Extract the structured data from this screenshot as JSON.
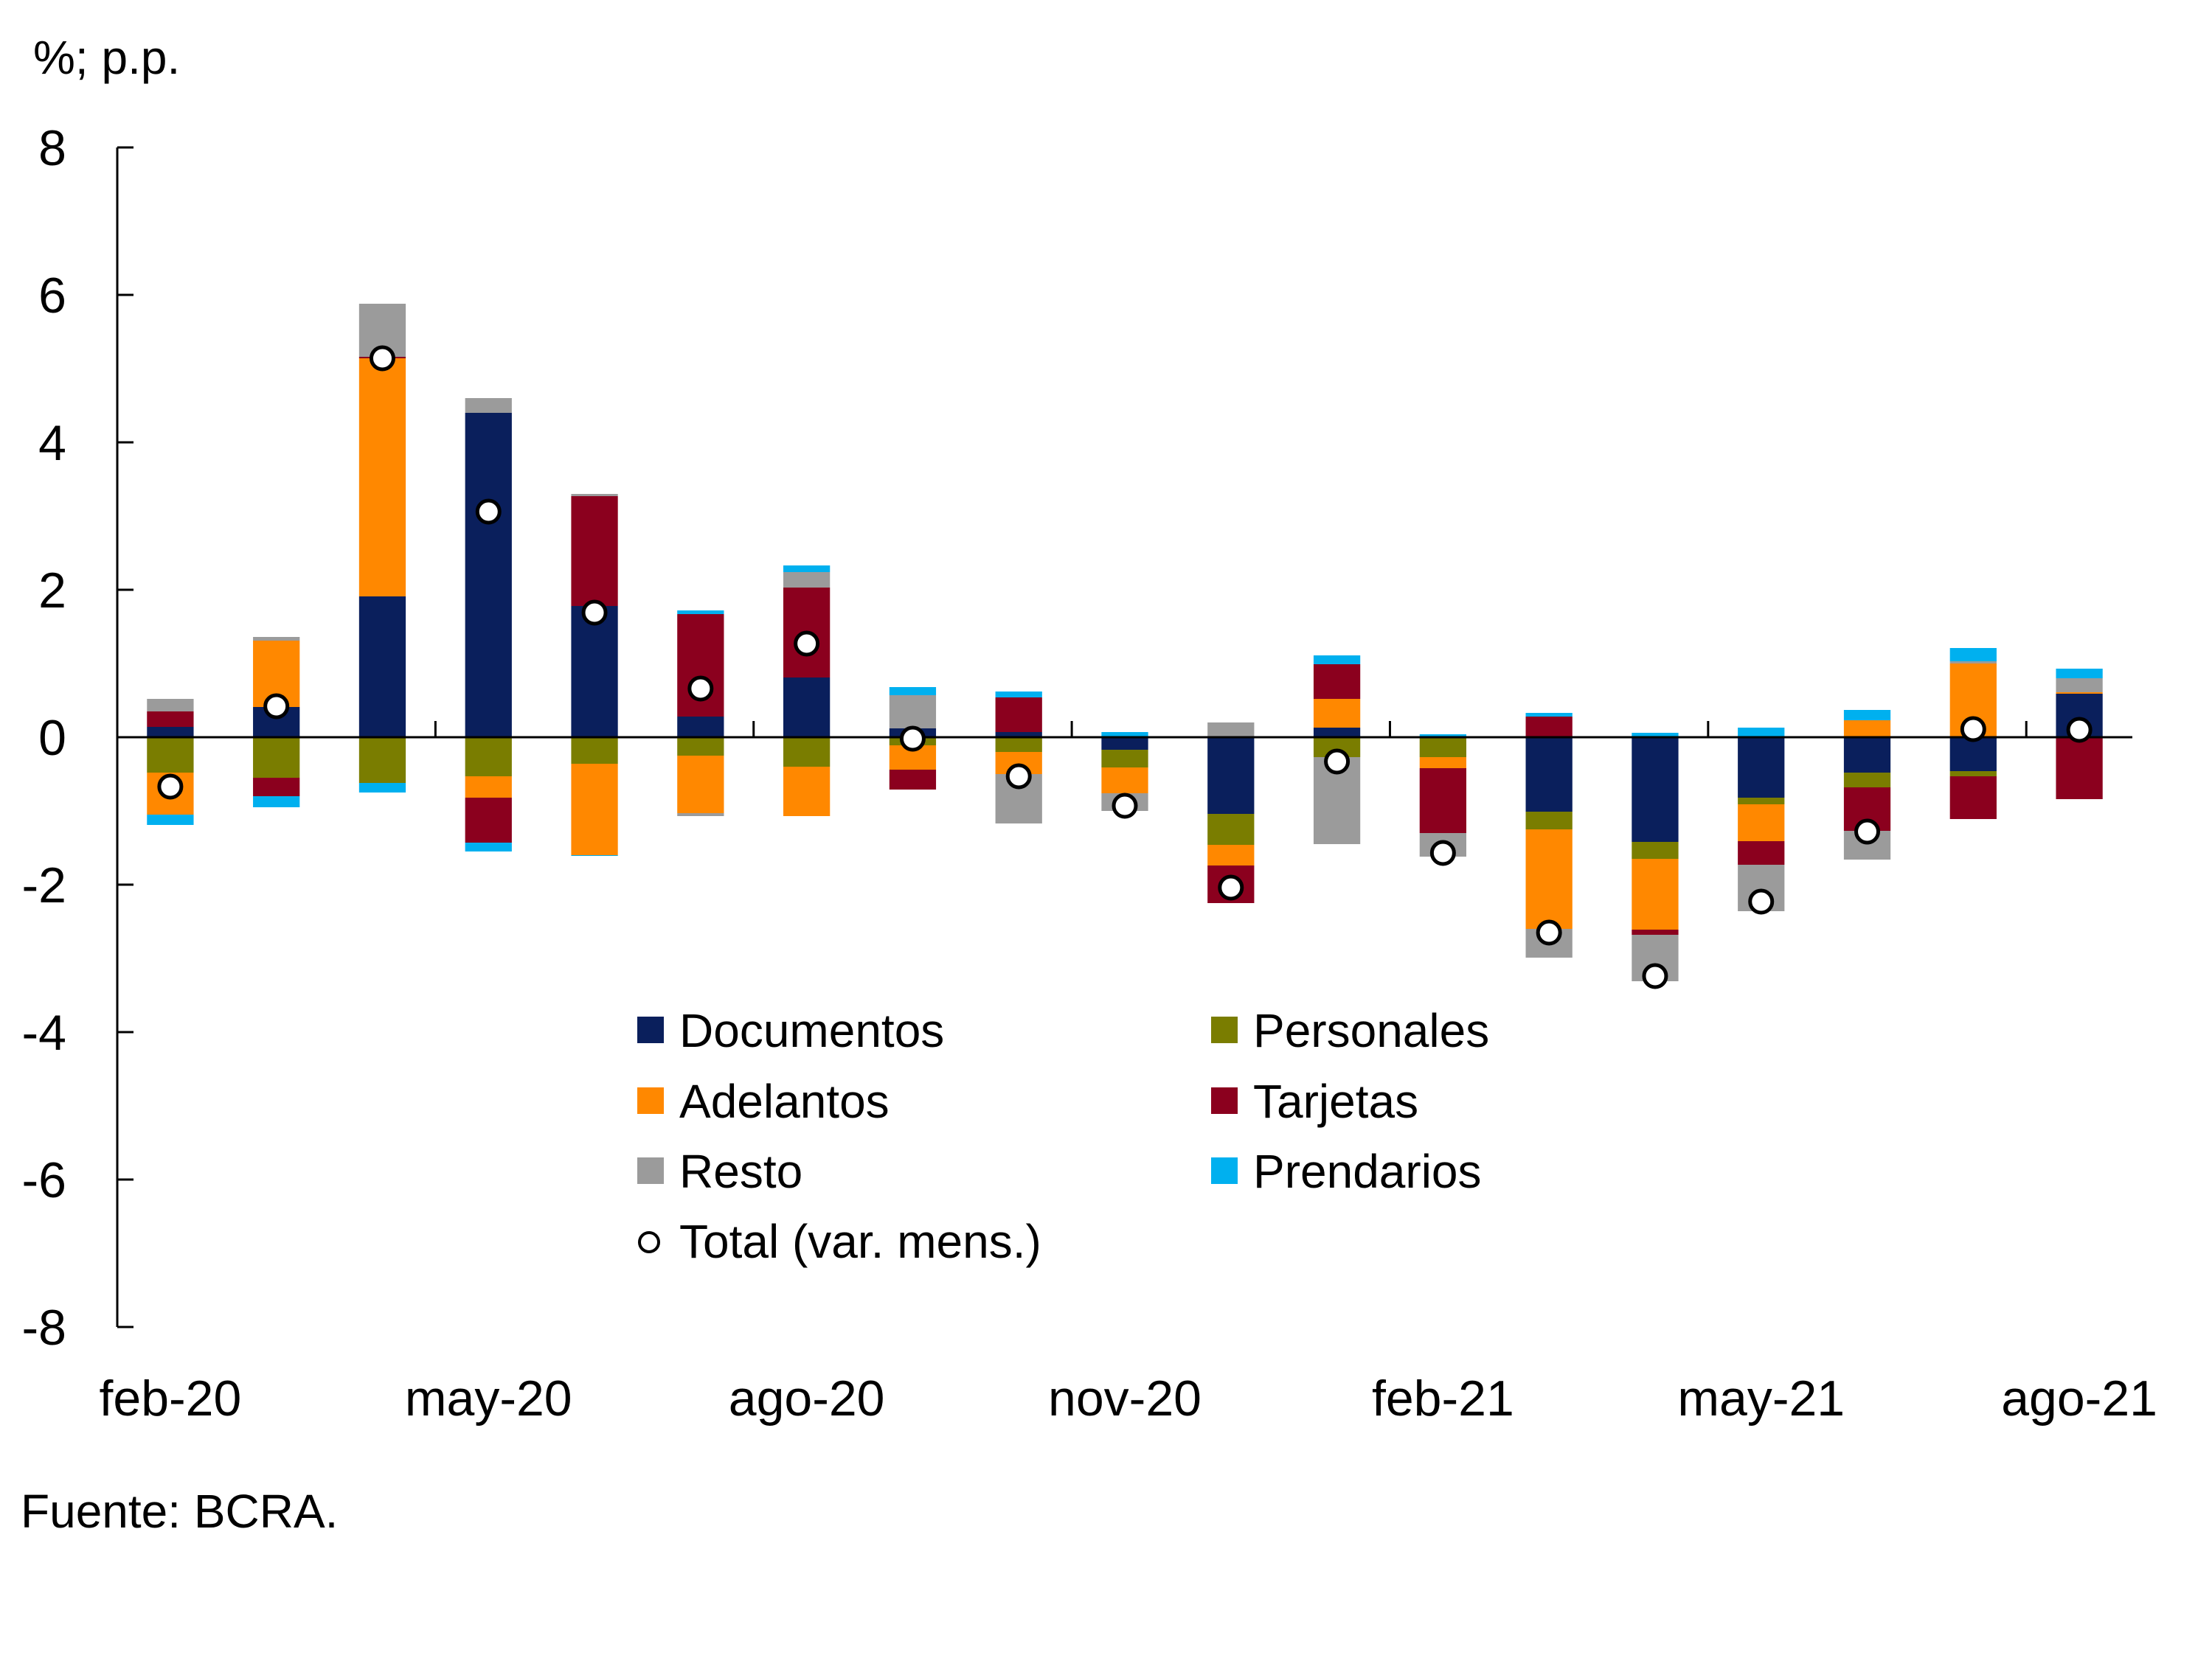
{
  "chart_data": {
    "type": "bar",
    "stacked": true,
    "title": "",
    "unit_label": "%; p.p.",
    "source": "Fuente: BCRA.",
    "ylim": [
      -8,
      8
    ],
    "yticks": [
      8,
      6,
      4,
      2,
      0,
      -2,
      -4,
      -6,
      -8
    ],
    "grid": false,
    "legend_position": "bottom-center (inside plot)",
    "categories": [
      "feb-20",
      "mar-20",
      "abr-20",
      "may-20",
      "jun-20",
      "jul-20",
      "ago-20",
      "sep-20",
      "oct-20",
      "nov-20",
      "dic-20",
      "ene-21",
      "feb-21",
      "mar-21",
      "abr-21",
      "may-21",
      "jun-21",
      "jul-21",
      "ago-21"
    ],
    "xtick_labels": [
      {
        "index": 0,
        "label": "feb-20"
      },
      {
        "index": 3,
        "label": "may-20"
      },
      {
        "index": 6,
        "label": "ago-20"
      },
      {
        "index": 9,
        "label": "nov-20"
      },
      {
        "index": 12,
        "label": "feb-21"
      },
      {
        "index": 15,
        "label": "may-21"
      },
      {
        "index": 18,
        "label": "ago-21"
      }
    ],
    "series": [
      {
        "name": "Documentos",
        "color": "#0a1f5c",
        "values": [
          0.14,
          0.41,
          1.91,
          4.4,
          1.78,
          0.28,
          0.81,
          0.12,
          0.07,
          -0.17,
          -1.04,
          0.13,
          0.0,
          -1.01,
          -1.42,
          -0.82,
          -0.48,
          -0.46,
          0.59
        ]
      },
      {
        "name": "Personales",
        "color": "#7a7d00",
        "values": [
          -0.48,
          -0.55,
          -0.62,
          -0.53,
          -0.36,
          -0.25,
          -0.4,
          -0.11,
          -0.2,
          -0.24,
          -0.42,
          -0.27,
          -0.27,
          -0.24,
          -0.23,
          -0.09,
          -0.2,
          -0.07,
          0.0
        ]
      },
      {
        "name": "Adelantos",
        "color": "#ff8800",
        "values": [
          -0.57,
          0.9,
          3.23,
          -0.29,
          -1.24,
          -0.78,
          -0.67,
          -0.33,
          -0.3,
          -0.35,
          -0.28,
          0.39,
          -0.15,
          -1.35,
          -0.96,
          -0.5,
          0.23,
          1.0,
          0.02
        ]
      },
      {
        "name": "Tarjetas",
        "color": "#8b001e",
        "values": [
          0.21,
          -0.25,
          0.02,
          -0.61,
          1.49,
          1.39,
          1.22,
          -0.27,
          0.47,
          0.0,
          -0.51,
          0.47,
          -0.88,
          0.28,
          -0.07,
          -0.32,
          -0.59,
          -0.58,
          -0.84
        ]
      },
      {
        "name": "Resto",
        "color": "#9b9b9b",
        "values": [
          0.17,
          0.05,
          0.72,
          0.2,
          0.03,
          -0.04,
          0.21,
          0.45,
          -0.67,
          -0.24,
          0.2,
          -1.18,
          -0.32,
          -0.39,
          -0.63,
          -0.63,
          -0.39,
          0.03,
          0.19
        ]
      },
      {
        "name": "Prendarios",
        "color": "#00b0ef",
        "values": [
          -0.14,
          -0.15,
          -0.13,
          -0.12,
          -0.01,
          0.05,
          0.09,
          0.11,
          0.08,
          0.07,
          0.0,
          0.12,
          0.04,
          0.05,
          0.06,
          0.13,
          0.14,
          0.18,
          0.13
        ]
      }
    ],
    "total": {
      "name": "Total (var. mens.)",
      "marker": "white-circle",
      "values": [
        -0.67,
        0.42,
        5.14,
        3.06,
        1.69,
        0.66,
        1.27,
        -0.02,
        -0.53,
        -0.93,
        -2.04,
        -0.33,
        -1.57,
        -2.65,
        -3.24,
        -2.23,
        -1.28,
        0.11,
        0.1
      ]
    },
    "legend": [
      {
        "label": "Documentos",
        "type": "square",
        "color": "#0a1f5c"
      },
      {
        "label": "Personales",
        "type": "square",
        "color": "#7a7d00"
      },
      {
        "label": "Adelantos",
        "type": "square",
        "color": "#ff8800"
      },
      {
        "label": "Tarjetas",
        "type": "square",
        "color": "#8b001e"
      },
      {
        "label": "Resto",
        "type": "square",
        "color": "#9b9b9b"
      },
      {
        "label": "Prendarios",
        "type": "square",
        "color": "#00b0ef"
      },
      {
        "label": "Total (var. mens.)",
        "type": "circle",
        "color": "#ffffff"
      }
    ]
  }
}
